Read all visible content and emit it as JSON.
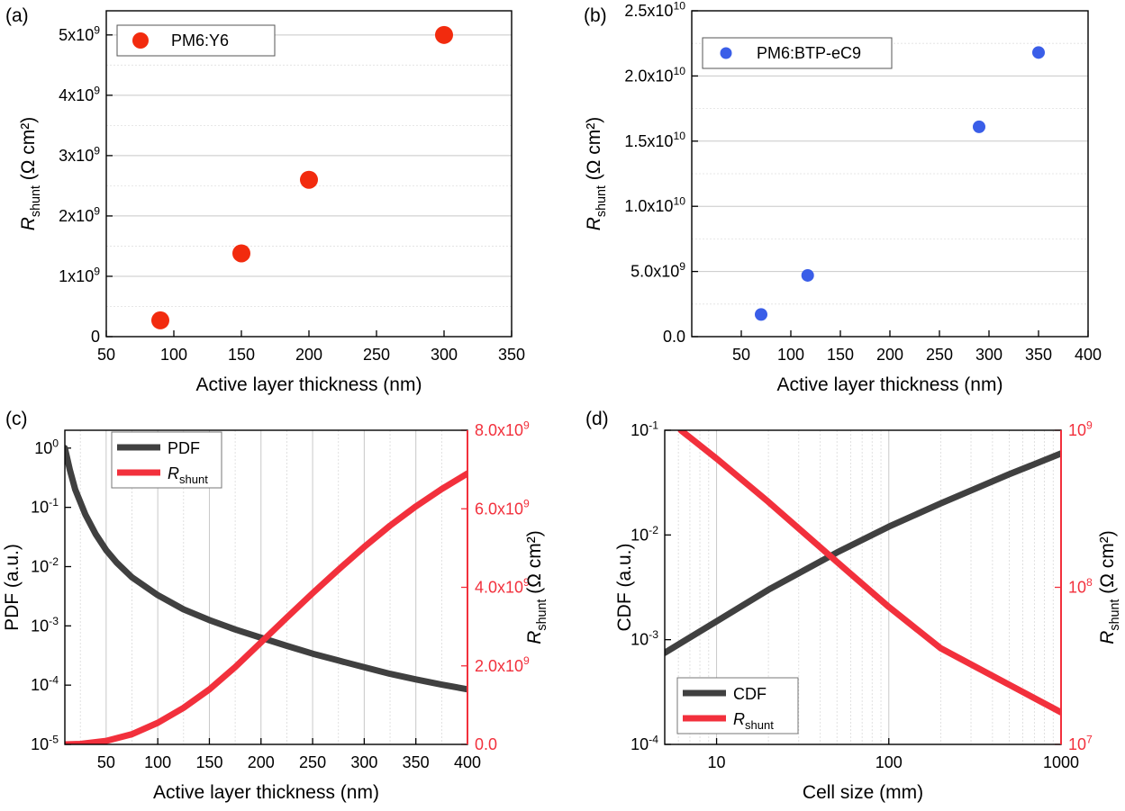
{
  "colors": {
    "red_marker": "#f22b0e",
    "blue_marker": "#3a5ee8",
    "pdf_curve": "#404040",
    "rshunt_curve": "#f2303c",
    "right_axis": "#f2303c",
    "grid": "#c8c8c8"
  },
  "chart_data": [
    {
      "panel_label": "(a)",
      "type": "scatter",
      "xlabel": "Active layer thickness (nm)",
      "ylabel": "R_shunt (Ω cm²)",
      "xlim": [
        50,
        350
      ],
      "ylim": [
        0,
        5400000000.0
      ],
      "x_ticks": [
        "50",
        "100",
        "150",
        "200",
        "250",
        "300",
        "350"
      ],
      "y_ticks": [
        "0",
        "1x10^9",
        "2x10^9",
        "3x10^9",
        "4x10^9",
        "5x10^9"
      ],
      "grid": "horizontal",
      "legend_position": "top-left",
      "series": [
        {
          "name": "PM6:Y6",
          "color": "#f22b0e",
          "x": [
            90,
            150,
            200,
            300
          ],
          "y": [
            270000000.0,
            1380000000.0,
            2600000000.0,
            5000000000.0
          ]
        }
      ]
    },
    {
      "panel_label": "(b)",
      "type": "scatter",
      "xlabel": "Active layer thickness (nm)",
      "ylabel": "R_shunt (Ω cm²)",
      "xlim": [
        0,
        400
      ],
      "ylim": [
        0,
        25000000000.0
      ],
      "x_ticks": [
        "50",
        "100",
        "150",
        "200",
        "250",
        "300",
        "350",
        "400"
      ],
      "y_ticks": [
        "0.0",
        "5.0x10^9",
        "1.0x10^10",
        "1.5x10^10",
        "2.0x10^10",
        "2.5x10^10"
      ],
      "grid": "horizontal",
      "legend_position": "top-left",
      "series": [
        {
          "name": "PM6:BTP-eC9",
          "color": "#3a5ee8",
          "x": [
            70,
            117,
            290,
            350
          ],
          "y": [
            1700000000.0,
            4700000000.0,
            16100000000.0,
            21800000000.0
          ]
        }
      ]
    },
    {
      "panel_label": "(c)",
      "type": "line",
      "xlabel": "Active layer thickness (nm)",
      "ylabel": "PDF (a.u.)",
      "ylabel_right": "R_shunt (Ω cm²)",
      "xlim": [
        10,
        400
      ],
      "ylim": [
        1e-05,
        2
      ],
      "ylim_right": [
        0,
        8000000000.0
      ],
      "y_scale": "log",
      "x_ticks": [
        "50",
        "100",
        "150",
        "200",
        "250",
        "300",
        "350",
        "400"
      ],
      "y_ticks": [
        "10^-5",
        "10^-4",
        "10^-3",
        "10^-2",
        "10^-1",
        "10^0"
      ],
      "y_right_ticks": [
        "0.0",
        "2.0x10^9",
        "4.0x10^9",
        "6.0x10^9",
        "8.0x10^9"
      ],
      "grid": "vertical",
      "legend_position": "top-left",
      "series": [
        {
          "name": "PDF",
          "axis": "left",
          "color": "#404040",
          "x": [
            10,
            15,
            20,
            30,
            40,
            50,
            60,
            75,
            100,
            125,
            150,
            175,
            200,
            225,
            250,
            275,
            300,
            325,
            350,
            375,
            400
          ],
          "y": [
            1.0,
            0.42,
            0.2,
            0.075,
            0.035,
            0.019,
            0.0118,
            0.0066,
            0.0033,
            0.0019,
            0.00125,
            0.00087,
            0.00063,
            0.00046,
            0.00034,
            0.00026,
            0.0002,
            0.000155,
            0.000125,
            0.000102,
            8.5e-05
          ]
        },
        {
          "name": "R_shunt",
          "axis": "right",
          "color": "#f2303c",
          "x": [
            10,
            25,
            50,
            75,
            100,
            125,
            150,
            175,
            200,
            225,
            250,
            275,
            300,
            325,
            350,
            375,
            400
          ],
          "y": [
            0,
            12000000.0,
            90000000.0,
            260000000.0,
            550000000.0,
            930000000.0,
            1400000000.0,
            1970000000.0,
            2600000000.0,
            3230000000.0,
            3850000000.0,
            4450000000.0,
            5030000000.0,
            5570000000.0,
            6060000000.0,
            6500000000.0,
            6900000000.0
          ]
        }
      ]
    },
    {
      "panel_label": "(d)",
      "type": "line",
      "xlabel": "Cell size (mm)",
      "ylabel": "CDF (a.u.)",
      "ylabel_right": "R_shunt (Ω cm²)",
      "xlim": [
        5,
        1000
      ],
      "ylim": [
        0.0001,
        0.1
      ],
      "ylim_right": [
        10000000.0,
        1000000000.0
      ],
      "x_scale": "log",
      "y_scale": "log",
      "y_right_scale": "log",
      "x_ticks": [
        "10",
        "100",
        "1000"
      ],
      "y_ticks": [
        "10^-4",
        "10^-3",
        "10^-2",
        "10^-1"
      ],
      "y_right_ticks": [
        "10^7",
        "10^8",
        "10^9"
      ],
      "grid": "vertical",
      "legend_position": "bottom-left",
      "series": [
        {
          "name": "CDF",
          "axis": "left",
          "color": "#404040",
          "x": [
            5,
            10,
            20,
            50,
            100,
            200,
            500,
            1000
          ],
          "y": [
            0.00075,
            0.0015,
            0.003,
            0.0068,
            0.012,
            0.02,
            0.038,
            0.06
          ]
        },
        {
          "name": "R_shunt",
          "axis": "right",
          "color": "#f2303c",
          "x": [
            6.2,
            10,
            20,
            50,
            100,
            200,
            500,
            1000
          ],
          "y": [
            1000000000.0,
            660000000.0,
            350000000.0,
            145000000.0,
            75000000.0,
            41000000.0,
            24000000.0,
            16000000.0
          ]
        }
      ]
    }
  ]
}
